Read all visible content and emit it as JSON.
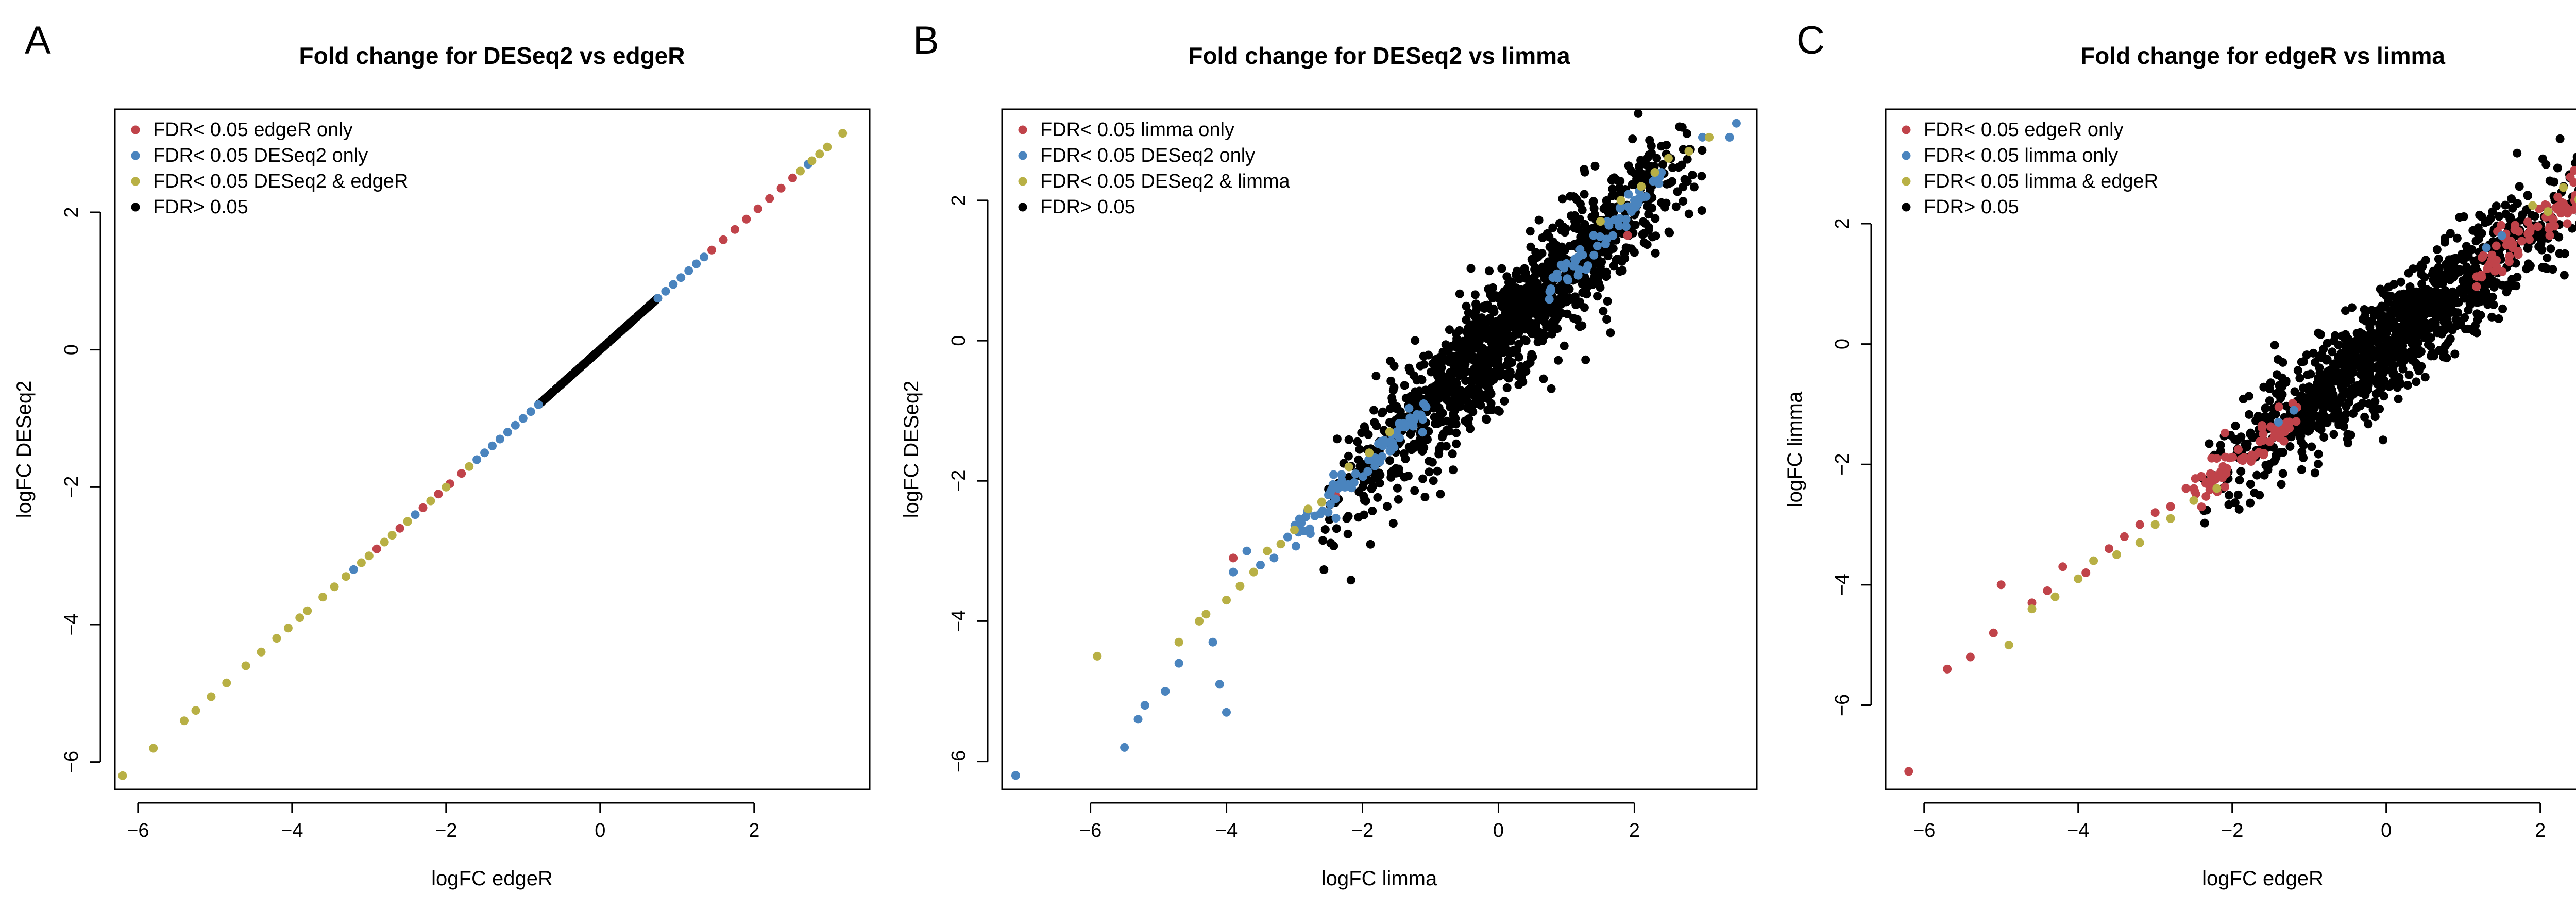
{
  "colors": {
    "red": "#C0434A",
    "blue": "#4A84BE",
    "olive": "#B8B045",
    "black": "#000000"
  },
  "chart_data": [
    {
      "panel_letter": "A",
      "type": "scatter",
      "title": "Fold change for DESeq2 vs edgeR",
      "xlabel": "logFC edgeR",
      "ylabel": "logFC DESeq2",
      "xlim": [
        -6.3,
        3.5
      ],
      "ylim": [
        -6.4,
        3.5
      ],
      "xticks": [
        -6,
        -4,
        -2,
        0,
        2
      ],
      "yticks": [
        -6,
        -4,
        -2,
        0,
        2
      ],
      "legend_position": "top-left",
      "series": [
        {
          "name": "FDR< 0.05 edgeR only",
          "color": "red",
          "points": [
            [
              -2.9,
              -2.9
            ],
            [
              -2.6,
              -2.6
            ],
            [
              -2.3,
              -2.3
            ],
            [
              -2.1,
              -2.1
            ],
            [
              -1.95,
              -1.95
            ],
            [
              -1.8,
              -1.8
            ],
            [
              1.45,
              1.45
            ],
            [
              1.6,
              1.6
            ],
            [
              1.75,
              1.75
            ],
            [
              1.9,
              1.9
            ],
            [
              2.05,
              2.05
            ],
            [
              2.2,
              2.2
            ],
            [
              2.35,
              2.35
            ],
            [
              2.5,
              2.5
            ]
          ]
        },
        {
          "name": "FDR< 0.05 DESeq2 only",
          "color": "blue",
          "points": [
            [
              -3.2,
              -3.2
            ],
            [
              -2.4,
              -2.4
            ],
            [
              -1.6,
              -1.6
            ],
            [
              -1.5,
              -1.5
            ],
            [
              -1.4,
              -1.4
            ],
            [
              -1.3,
              -1.3
            ],
            [
              -1.2,
              -1.2
            ],
            [
              -1.1,
              -1.1
            ],
            [
              -1.0,
              -1.0
            ],
            [
              -0.9,
              -0.9
            ],
            [
              -0.8,
              -0.8
            ],
            [
              0.75,
              0.75
            ],
            [
              0.85,
              0.85
            ],
            [
              0.95,
              0.95
            ],
            [
              1.05,
              1.05
            ],
            [
              1.15,
              1.15
            ],
            [
              1.25,
              1.25
            ],
            [
              1.35,
              1.35
            ],
            [
              2.7,
              2.7
            ]
          ]
        },
        {
          "name": "FDR< 0.05 DESeq2 & edgeR",
          "color": "olive",
          "points": [
            [
              -6.2,
              -6.2
            ],
            [
              -5.8,
              -5.8
            ],
            [
              -5.4,
              -5.4
            ],
            [
              -5.25,
              -5.25
            ],
            [
              -5.05,
              -5.05
            ],
            [
              -4.85,
              -4.85
            ],
            [
              -4.6,
              -4.6
            ],
            [
              -4.4,
              -4.4
            ],
            [
              -4.2,
              -4.2
            ],
            [
              -4.05,
              -4.05
            ],
            [
              -3.9,
              -3.9
            ],
            [
              -3.8,
              -3.8
            ],
            [
              -3.6,
              -3.6
            ],
            [
              -3.45,
              -3.45
            ],
            [
              -3.3,
              -3.3
            ],
            [
              -3.1,
              -3.1
            ],
            [
              -3.0,
              -3.0
            ],
            [
              -2.8,
              -2.8
            ],
            [
              -2.7,
              -2.7
            ],
            [
              -2.5,
              -2.5
            ],
            [
              -2.2,
              -2.2
            ],
            [
              -2.0,
              -2.0
            ],
            [
              -1.7,
              -1.7
            ],
            [
              2.6,
              2.6
            ],
            [
              2.75,
              2.75
            ],
            [
              2.85,
              2.85
            ],
            [
              2.95,
              2.95
            ],
            [
              3.15,
              3.15
            ]
          ]
        },
        {
          "name": "FDR> 0.05",
          "color": "black",
          "segment": {
            "x_from": -0.8,
            "x_to": 0.75,
            "slope": 1.0,
            "intercept": 0.0,
            "n": 160,
            "scatter": 0.0
          }
        }
      ]
    },
    {
      "panel_letter": "B",
      "type": "scatter",
      "title": "Fold change for DESeq2 vs limma",
      "xlabel": "logFC limma",
      "ylabel": "logFC DESeq2",
      "xlim": [
        -7.3,
        3.8
      ],
      "ylim": [
        -6.4,
        3.3
      ],
      "xticks": [
        -6,
        -4,
        -2,
        0,
        2
      ],
      "yticks": [
        -6,
        -4,
        -2,
        0,
        2
      ],
      "legend_position": "top-left",
      "series": [
        {
          "name": "FDR< 0.05 limma only",
          "color": "red",
          "points": [
            [
              1.9,
              1.5
            ],
            [
              -3.9,
              -3.1
            ],
            [
              -2.4,
              -2.2
            ]
          ]
        },
        {
          "name": "FDR< 0.05 DESeq2 only",
          "color": "blue",
          "points": [
            [
              -7.1,
              -6.2
            ],
            [
              -5.5,
              -5.8
            ],
            [
              -5.3,
              -5.4
            ],
            [
              -5.2,
              -5.2
            ],
            [
              -4.9,
              -5.0
            ],
            [
              -4.7,
              -4.6
            ],
            [
              -4.1,
              -4.9
            ],
            [
              -4.0,
              -5.3
            ],
            [
              -4.2,
              -4.3
            ],
            [
              -3.9,
              -3.3
            ],
            [
              -3.7,
              -3.0
            ],
            [
              -3.5,
              -3.2
            ],
            [
              -3.3,
              -3.1
            ],
            [
              -3.1,
              -2.8
            ],
            [
              -2.9,
              -2.6
            ],
            [
              -2.7,
              -2.5
            ],
            [
              -2.5,
              -2.2
            ],
            [
              -2.3,
              -2.0
            ],
            [
              -2.1,
              -1.9
            ],
            [
              -1.9,
              -1.7
            ],
            [
              -1.7,
              -1.5
            ],
            [
              -1.5,
              -1.3
            ],
            [
              -1.3,
              -1.1
            ],
            [
              -1.1,
              -0.9
            ],
            [
              0.8,
              0.9
            ],
            [
              1.0,
              1.1
            ],
            [
              1.2,
              1.3
            ],
            [
              1.4,
              1.5
            ],
            [
              1.6,
              1.7
            ],
            [
              1.8,
              1.9
            ],
            [
              2.0,
              2.0
            ],
            [
              3.0,
              2.9
            ],
            [
              3.4,
              2.9
            ],
            [
              3.5,
              3.1
            ]
          ],
          "segment": {
            "x_from": -3.0,
            "x_to": 2.4,
            "slope": 0.95,
            "intercept": 0.05,
            "n": 160,
            "scatter": 0.12,
            "gap": [
              -1.0,
              0.7
            ]
          }
        },
        {
          "name": "FDR< 0.05 DESeq2 & limma",
          "color": "olive",
          "points": [
            [
              -5.9,
              -4.5
            ],
            [
              -4.7,
              -4.3
            ],
            [
              -4.4,
              -4.0
            ],
            [
              -4.3,
              -3.9
            ],
            [
              -4.0,
              -3.7
            ],
            [
              -3.8,
              -3.5
            ],
            [
              -3.6,
              -3.3
            ],
            [
              -3.4,
              -3.0
            ],
            [
              -3.2,
              -2.9
            ],
            [
              -3.0,
              -2.7
            ],
            [
              -2.8,
              -2.4
            ],
            [
              -2.6,
              -2.3
            ],
            [
              -2.2,
              -1.8
            ],
            [
              -1.9,
              -1.6
            ],
            [
              -1.6,
              -1.3
            ],
            [
              1.5,
              1.7
            ],
            [
              1.8,
              2.0
            ],
            [
              2.1,
              2.2
            ],
            [
              2.3,
              2.4
            ],
            [
              2.5,
              2.6
            ],
            [
              2.8,
              2.7
            ],
            [
              3.1,
              2.9
            ]
          ]
        },
        {
          "name": "FDR> 0.05",
          "color": "black",
          "cloud": {
            "x_from": -2.2,
            "x_to": 2.6,
            "slope": 0.95,
            "intercept": 0.0,
            "n": 1300,
            "scatter": 0.45
          }
        }
      ]
    },
    {
      "panel_letter": "C",
      "type": "scatter",
      "title": "Fold change for edgeR vs limma",
      "xlabel": "logFC edgeR",
      "ylabel": "logFC limma",
      "xlim": [
        -6.5,
        3.3
      ],
      "ylim": [
        -7.4,
        3.9
      ],
      "xticks": [
        -6,
        -4,
        -2,
        0,
        2
      ],
      "yticks": [
        -6,
        -4,
        -2,
        0,
        2
      ],
      "legend_position": "top-left",
      "series": [
        {
          "name": "FDR< 0.05 edgeR only",
          "color": "red",
          "points": [
            [
              -6.2,
              -7.1
            ],
            [
              -5.7,
              -5.4
            ],
            [
              -5.4,
              -5.2
            ],
            [
              -5.0,
              -4.0
            ],
            [
              -5.1,
              -4.8
            ],
            [
              -4.6,
              -4.3
            ],
            [
              -4.4,
              -4.1
            ],
            [
              -4.2,
              -3.7
            ],
            [
              -3.9,
              -3.8
            ],
            [
              -3.6,
              -3.4
            ],
            [
              -3.4,
              -3.2
            ],
            [
              -3.2,
              -3.0
            ],
            [
              -3.0,
              -2.8
            ],
            [
              -2.8,
              -2.7
            ],
            [
              -2.6,
              -2.4
            ],
            [
              -2.4,
              -2.2
            ],
            [
              -2.2,
              -1.9
            ],
            [
              2.9,
              3.5
            ],
            [
              3.0,
              3.5
            ],
            [
              2.7,
              3.0
            ],
            [
              2.6,
              2.8
            ]
          ],
          "segment_list": [
            {
              "x_from": -2.5,
              "x_to": -1.1,
              "slope": 1.0,
              "intercept": 0.0,
              "n": 70,
              "scatter": 0.18
            },
            {
              "x_from": 1.1,
              "x_to": 2.5,
              "slope": 1.0,
              "intercept": 0.0,
              "n": 70,
              "scatter": 0.18
            }
          ]
        },
        {
          "name": "FDR< 0.05 limma only",
          "color": "blue",
          "points": [
            [
              -1.4,
              -1.3
            ],
            [
              -1.2,
              -1.1
            ],
            [
              1.3,
              1.6
            ],
            [
              1.5,
              1.8
            ]
          ]
        },
        {
          "name": "FDR< 0.05 limma & edgeR",
          "color": "olive",
          "points": [
            [
              -4.9,
              -5.0
            ],
            [
              -4.6,
              -4.4
            ],
            [
              -4.3,
              -4.2
            ],
            [
              -4.0,
              -3.9
            ],
            [
              -3.8,
              -3.6
            ],
            [
              -3.5,
              -3.5
            ],
            [
              -3.2,
              -3.3
            ],
            [
              -3.0,
              -3.0
            ],
            [
              -2.8,
              -2.9
            ],
            [
              -2.5,
              -2.6
            ],
            [
              -2.2,
              -2.4
            ],
            [
              1.9,
              2.3
            ],
            [
              2.1,
              2.2
            ],
            [
              2.3,
              2.6
            ],
            [
              2.5,
              2.4
            ],
            [
              2.7,
              3.0
            ],
            [
              2.9,
              3.0
            ]
          ]
        },
        {
          "name": "FDR> 0.05",
          "color": "black",
          "cloud": {
            "x_from": -2.0,
            "x_to": 2.2,
            "slope": 1.0,
            "intercept": 0.0,
            "n": 1300,
            "scatter": 0.45
          }
        }
      ]
    }
  ]
}
